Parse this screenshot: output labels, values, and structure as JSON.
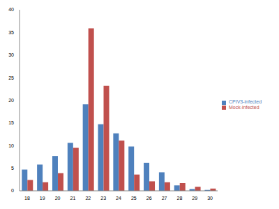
{
  "chart_data": {
    "type": "bar",
    "categories": [
      "18",
      "19",
      "20",
      "21",
      "22",
      "23",
      "24",
      "25",
      "26",
      "27",
      "28",
      "29",
      "30"
    ],
    "series": [
      {
        "name": "CPIV3-infected",
        "color": "#4f81bd",
        "values": [
          4.7,
          5.8,
          7.7,
          10.6,
          19.1,
          14.7,
          12.7,
          9.8,
          6.2,
          4.1,
          1.2,
          0.4,
          0.2
        ]
      },
      {
        "name": "Mock-infected",
        "color": "#c0504d",
        "values": [
          2.4,
          1.9,
          3.9,
          9.5,
          35.9,
          23.2,
          11.1,
          3.6,
          2.1,
          1.9,
          1.7,
          0.9,
          0.5
        ]
      }
    ],
    "ylim": [
      0,
      40
    ],
    "yticks": [
      0,
      5,
      10,
      15,
      20,
      25,
      30,
      35,
      40
    ],
    "grid": false,
    "legend": "right"
  }
}
